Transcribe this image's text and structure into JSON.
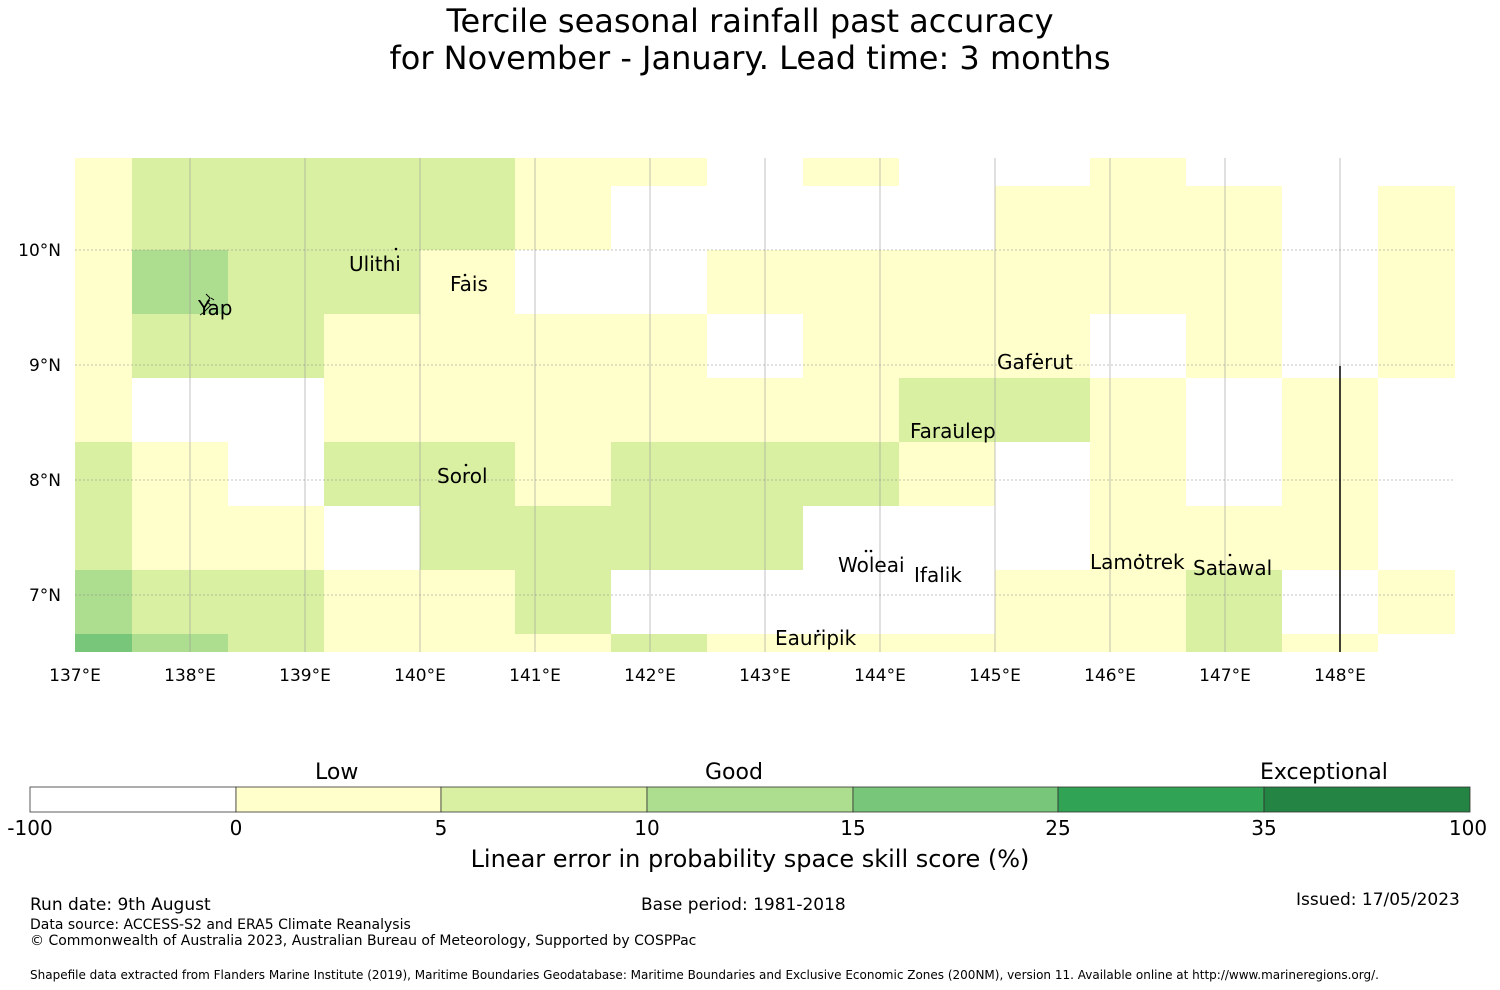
{
  "title": {
    "line1": "Tercile seasonal rainfall past accuracy",
    "line2": "for November - January. Lead time: 3 months"
  },
  "map": {
    "lon_labels": [
      "137°E",
      "138°E",
      "139°E",
      "140°E",
      "141°E",
      "142°E",
      "143°E",
      "144°E",
      "145°E",
      "146°E",
      "147°E",
      "148°E"
    ],
    "lat_labels": [
      "10°N",
      "9°N",
      "8°N",
      "7°N"
    ],
    "places": [
      {
        "name": "Ulithi"
      },
      {
        "name": "Fais"
      },
      {
        "name": "Yap"
      },
      {
        "name": "Gaferut"
      },
      {
        "name": "Faraulep"
      },
      {
        "name": "Sorol"
      },
      {
        "name": "Woleai"
      },
      {
        "name": "Ifalik"
      },
      {
        "name": "Lamotrek"
      },
      {
        "name": "Satawal"
      },
      {
        "name": "Eauripik"
      }
    ]
  },
  "colorbar": {
    "categories": [
      "Low",
      "Good",
      "Exceptional"
    ],
    "ticks": [
      "-100",
      "0",
      "5",
      "10",
      "15",
      "25",
      "35",
      "100"
    ],
    "colors": [
      "#ffffff",
      "#ffffcc",
      "#d9f0a3",
      "#addd8e",
      "#78c679",
      "#31a354",
      "#238443"
    ],
    "axis_label": "Linear error in probability space skill score (%)"
  },
  "footer": {
    "run_date": "Run date: 9th August",
    "base_period": "Base period: 1981-2018",
    "issued": "Issued: 17/05/2023",
    "data_source": "Data source: ACCESS-S2 and ERA5 Climate Reanalysis",
    "copyright": "© Commonwealth of Australia 2023, Australian Bureau of Meteorology, Supported by COSPPac",
    "shapefile": "Shapefile data extracted from Flanders Marine Institute (2019), Maritime Boundaries Geodatabase: Maritime Boundaries and Exclusive Economic Zones (200NM), version 11. Available online at http://www.marineregions.org/."
  }
}
